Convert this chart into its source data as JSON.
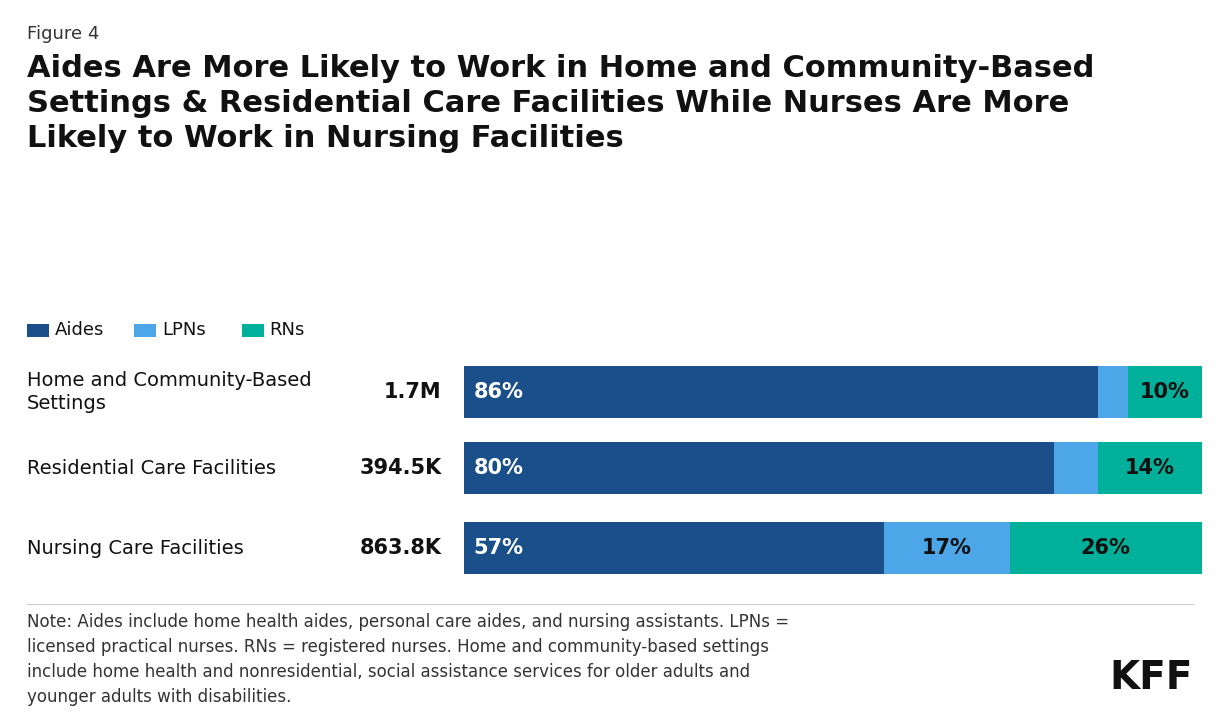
{
  "figure_label": "Figure 4",
  "title": "Aides Are More Likely to Work in Home and Community-Based\nSettings & Residential Care Facilities While Nurses Are More\nLikely to Work in Nursing Facilities",
  "categories": [
    "Home and Community-Based\nSettings",
    "Residential Care Facilities",
    "Nursing Care Facilities"
  ],
  "totals": [
    "1.7M",
    "394.5K",
    "863.8K"
  ],
  "aides_pct": [
    86,
    80,
    57
  ],
  "lpns_pct": [
    4,
    6,
    17
  ],
  "rns_pct": [
    10,
    14,
    26
  ],
  "aides_color": "#1a4f8a",
  "lpns_color": "#4da6e8",
  "rns_color": "#00b09b",
  "legend_labels": [
    "Aides",
    "LPNs",
    "RNs"
  ],
  "note": "Note: Aides include home health aides, personal care aides, and nursing assistants. LPNs =\nlicensed practical nurses. RNs = registered nurses. Home and community-based settings\ninclude home health and nonresidential, social assistance services for older adults and\nyounger adults with disabilities.",
  "kff_label": "KFF",
  "background_color": "#ffffff"
}
